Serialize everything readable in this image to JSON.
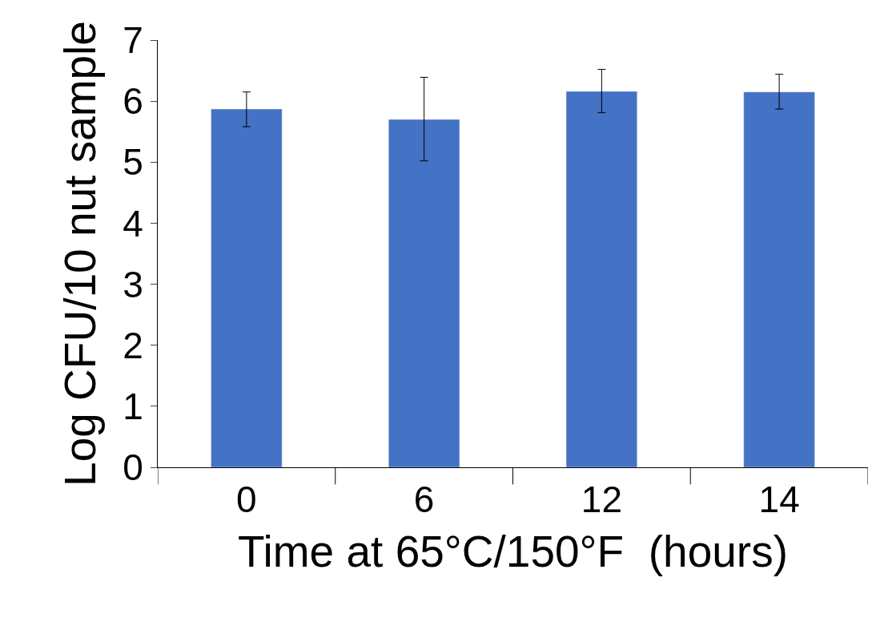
{
  "chart_data": {
    "type": "bar",
    "xlabel": "Time at 65°C/150°F  (hours)",
    "ylabel": "Log CFU/10 nut sample",
    "categories": [
      "0",
      "6",
      "12",
      "14"
    ],
    "values": [
      5.87,
      5.7,
      6.16,
      6.15
    ],
    "errors": [
      [
        5.58,
        6.15
      ],
      [
        5.02,
        6.39
      ],
      [
        5.81,
        6.52
      ],
      [
        5.87,
        6.44
      ]
    ],
    "color": "#4472c4",
    "ylim": [
      0,
      7
    ],
    "yticks": [
      0,
      1,
      2,
      3,
      4,
      5,
      6,
      7
    ]
  }
}
